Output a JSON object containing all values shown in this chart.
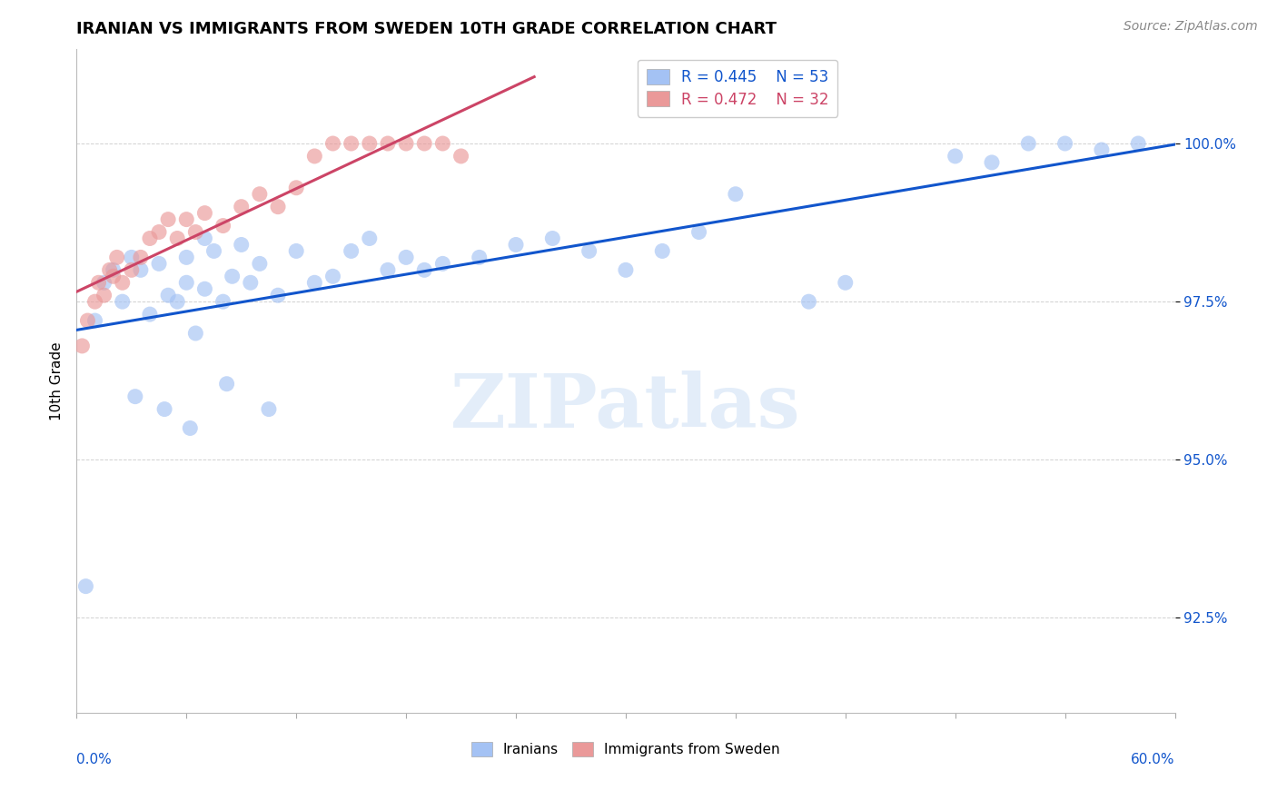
{
  "title": "IRANIAN VS IMMIGRANTS FROM SWEDEN 10TH GRADE CORRELATION CHART",
  "source": "Source: ZipAtlas.com",
  "ylabel": "10th Grade",
  "y_ticks": [
    92.5,
    95.0,
    97.5,
    100.0
  ],
  "y_tick_labels": [
    "92.5%",
    "95.0%",
    "97.5%",
    "100.0%"
  ],
  "x_min": 0.0,
  "x_max": 60.0,
  "y_min": 91.0,
  "y_max": 101.5,
  "legend_blue_r": "0.445",
  "legend_blue_n": "53",
  "legend_pink_r": "0.472",
  "legend_pink_n": "32",
  "blue_color": "#a4c2f4",
  "pink_color": "#ea9999",
  "trendline_blue": "#1155cc",
  "trendline_pink": "#cc4466",
  "watermark_text": "ZIPatlas",
  "blue_x": [
    0.5,
    1.0,
    1.5,
    2.0,
    2.5,
    3.0,
    3.5,
    4.0,
    4.5,
    5.0,
    5.5,
    6.0,
    6.0,
    6.5,
    7.0,
    7.0,
    7.5,
    8.0,
    8.5,
    9.0,
    9.5,
    10.0,
    11.0,
    12.0,
    13.0,
    14.0,
    15.0,
    16.0,
    17.0,
    18.0,
    19.0,
    20.0,
    22.0,
    24.0,
    26.0,
    28.0,
    30.0,
    32.0,
    34.0,
    36.0,
    40.0,
    42.0,
    48.0,
    50.0,
    52.0,
    54.0,
    56.0,
    58.0,
    3.2,
    4.8,
    6.2,
    8.2,
    10.5
  ],
  "blue_y": [
    93.0,
    97.2,
    97.8,
    98.0,
    97.5,
    98.2,
    98.0,
    97.3,
    98.1,
    97.6,
    97.5,
    98.2,
    97.8,
    97.0,
    98.5,
    97.7,
    98.3,
    97.5,
    97.9,
    98.4,
    97.8,
    98.1,
    97.6,
    98.3,
    97.8,
    97.9,
    98.3,
    98.5,
    98.0,
    98.2,
    98.0,
    98.1,
    98.2,
    98.4,
    98.5,
    98.3,
    98.0,
    98.3,
    98.6,
    99.2,
    97.5,
    97.8,
    99.8,
    99.7,
    100.0,
    100.0,
    99.9,
    100.0,
    96.0,
    95.8,
    95.5,
    96.2,
    95.8
  ],
  "pink_x": [
    0.3,
    0.6,
    1.0,
    1.2,
    1.5,
    1.8,
    2.0,
    2.2,
    2.5,
    3.0,
    3.5,
    4.0,
    4.5,
    5.0,
    5.5,
    6.0,
    6.5,
    7.0,
    8.0,
    9.0,
    10.0,
    11.0,
    12.0,
    13.0,
    14.0,
    15.0,
    16.0,
    17.0,
    18.0,
    19.0,
    20.0,
    21.0
  ],
  "pink_y": [
    96.8,
    97.2,
    97.5,
    97.8,
    97.6,
    98.0,
    97.9,
    98.2,
    97.8,
    98.0,
    98.2,
    98.5,
    98.6,
    98.8,
    98.5,
    98.8,
    98.6,
    98.9,
    98.7,
    99.0,
    99.2,
    99.0,
    99.3,
    99.8,
    100.0,
    100.0,
    100.0,
    100.0,
    100.0,
    100.0,
    100.0,
    99.8
  ]
}
